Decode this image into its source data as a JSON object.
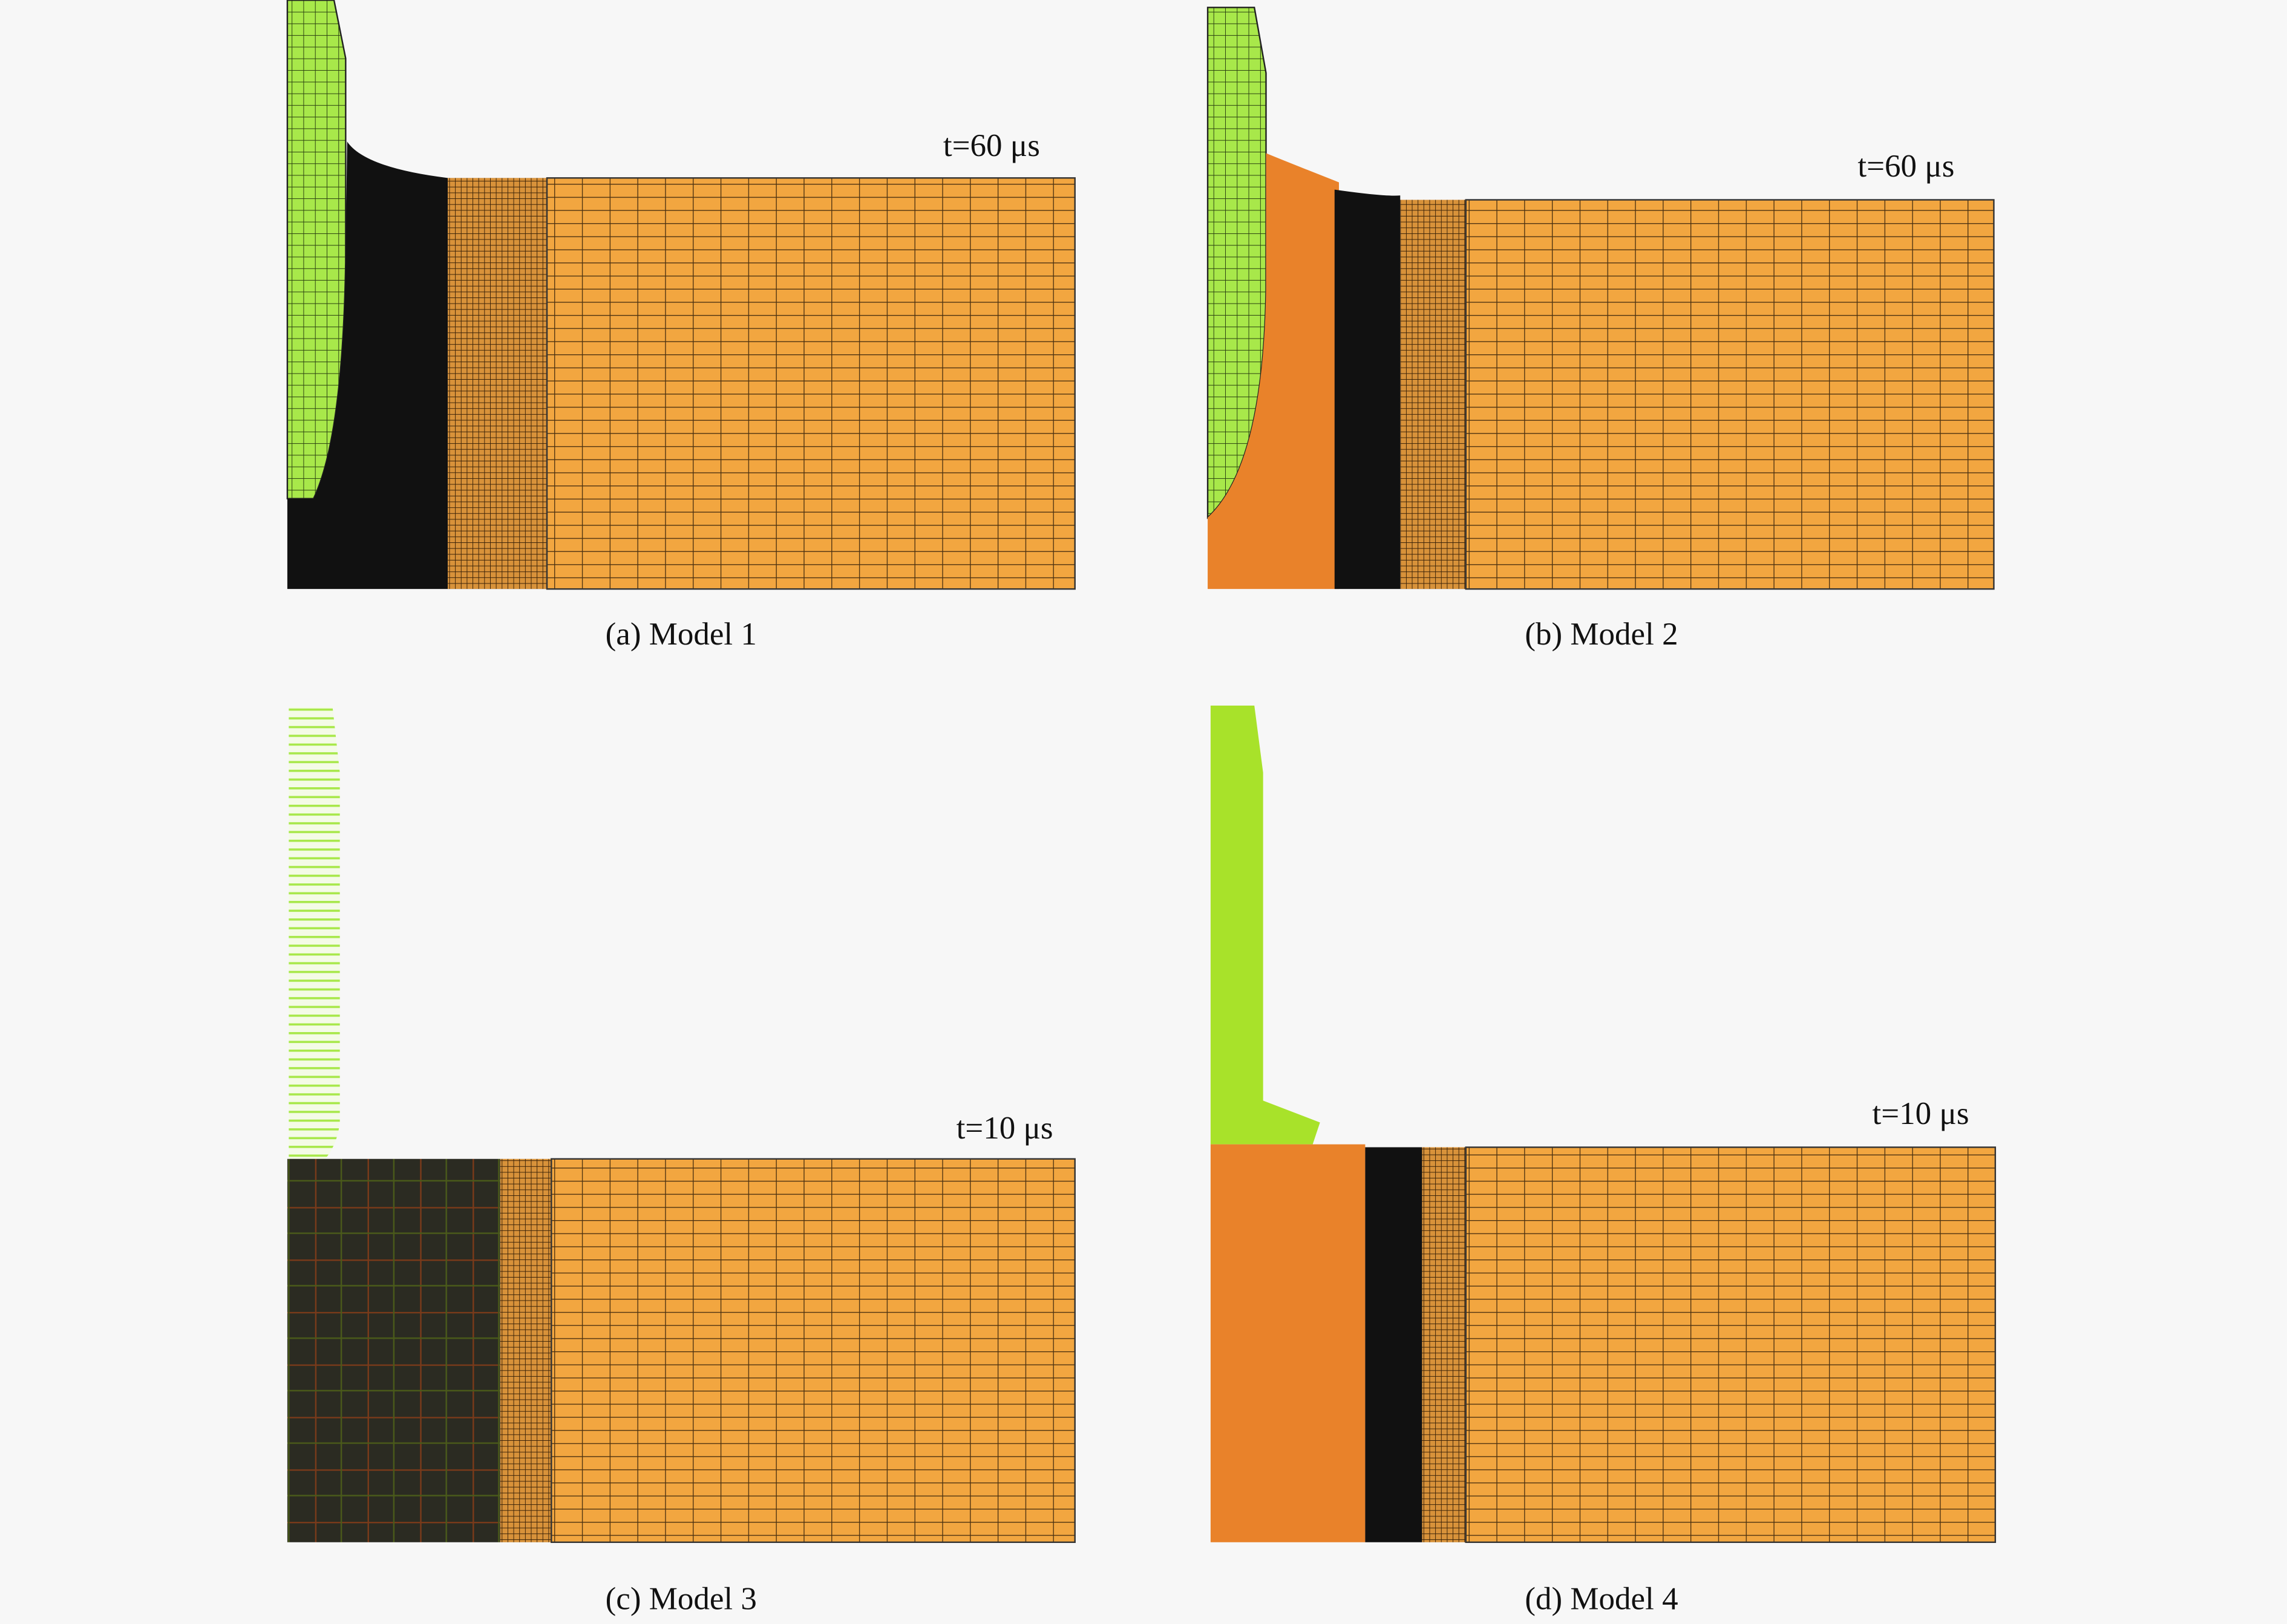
{
  "panels": [
    {
      "time": "t=60 μs",
      "caption": "(a) Model 1"
    },
    {
      "time": "t=60 μs",
      "caption": "(b) Model 2"
    },
    {
      "time": "t=10 μs",
      "caption": "(c) Model 3"
    },
    {
      "time": "t=10 μs",
      "caption": "(d) Model 4"
    }
  ]
}
